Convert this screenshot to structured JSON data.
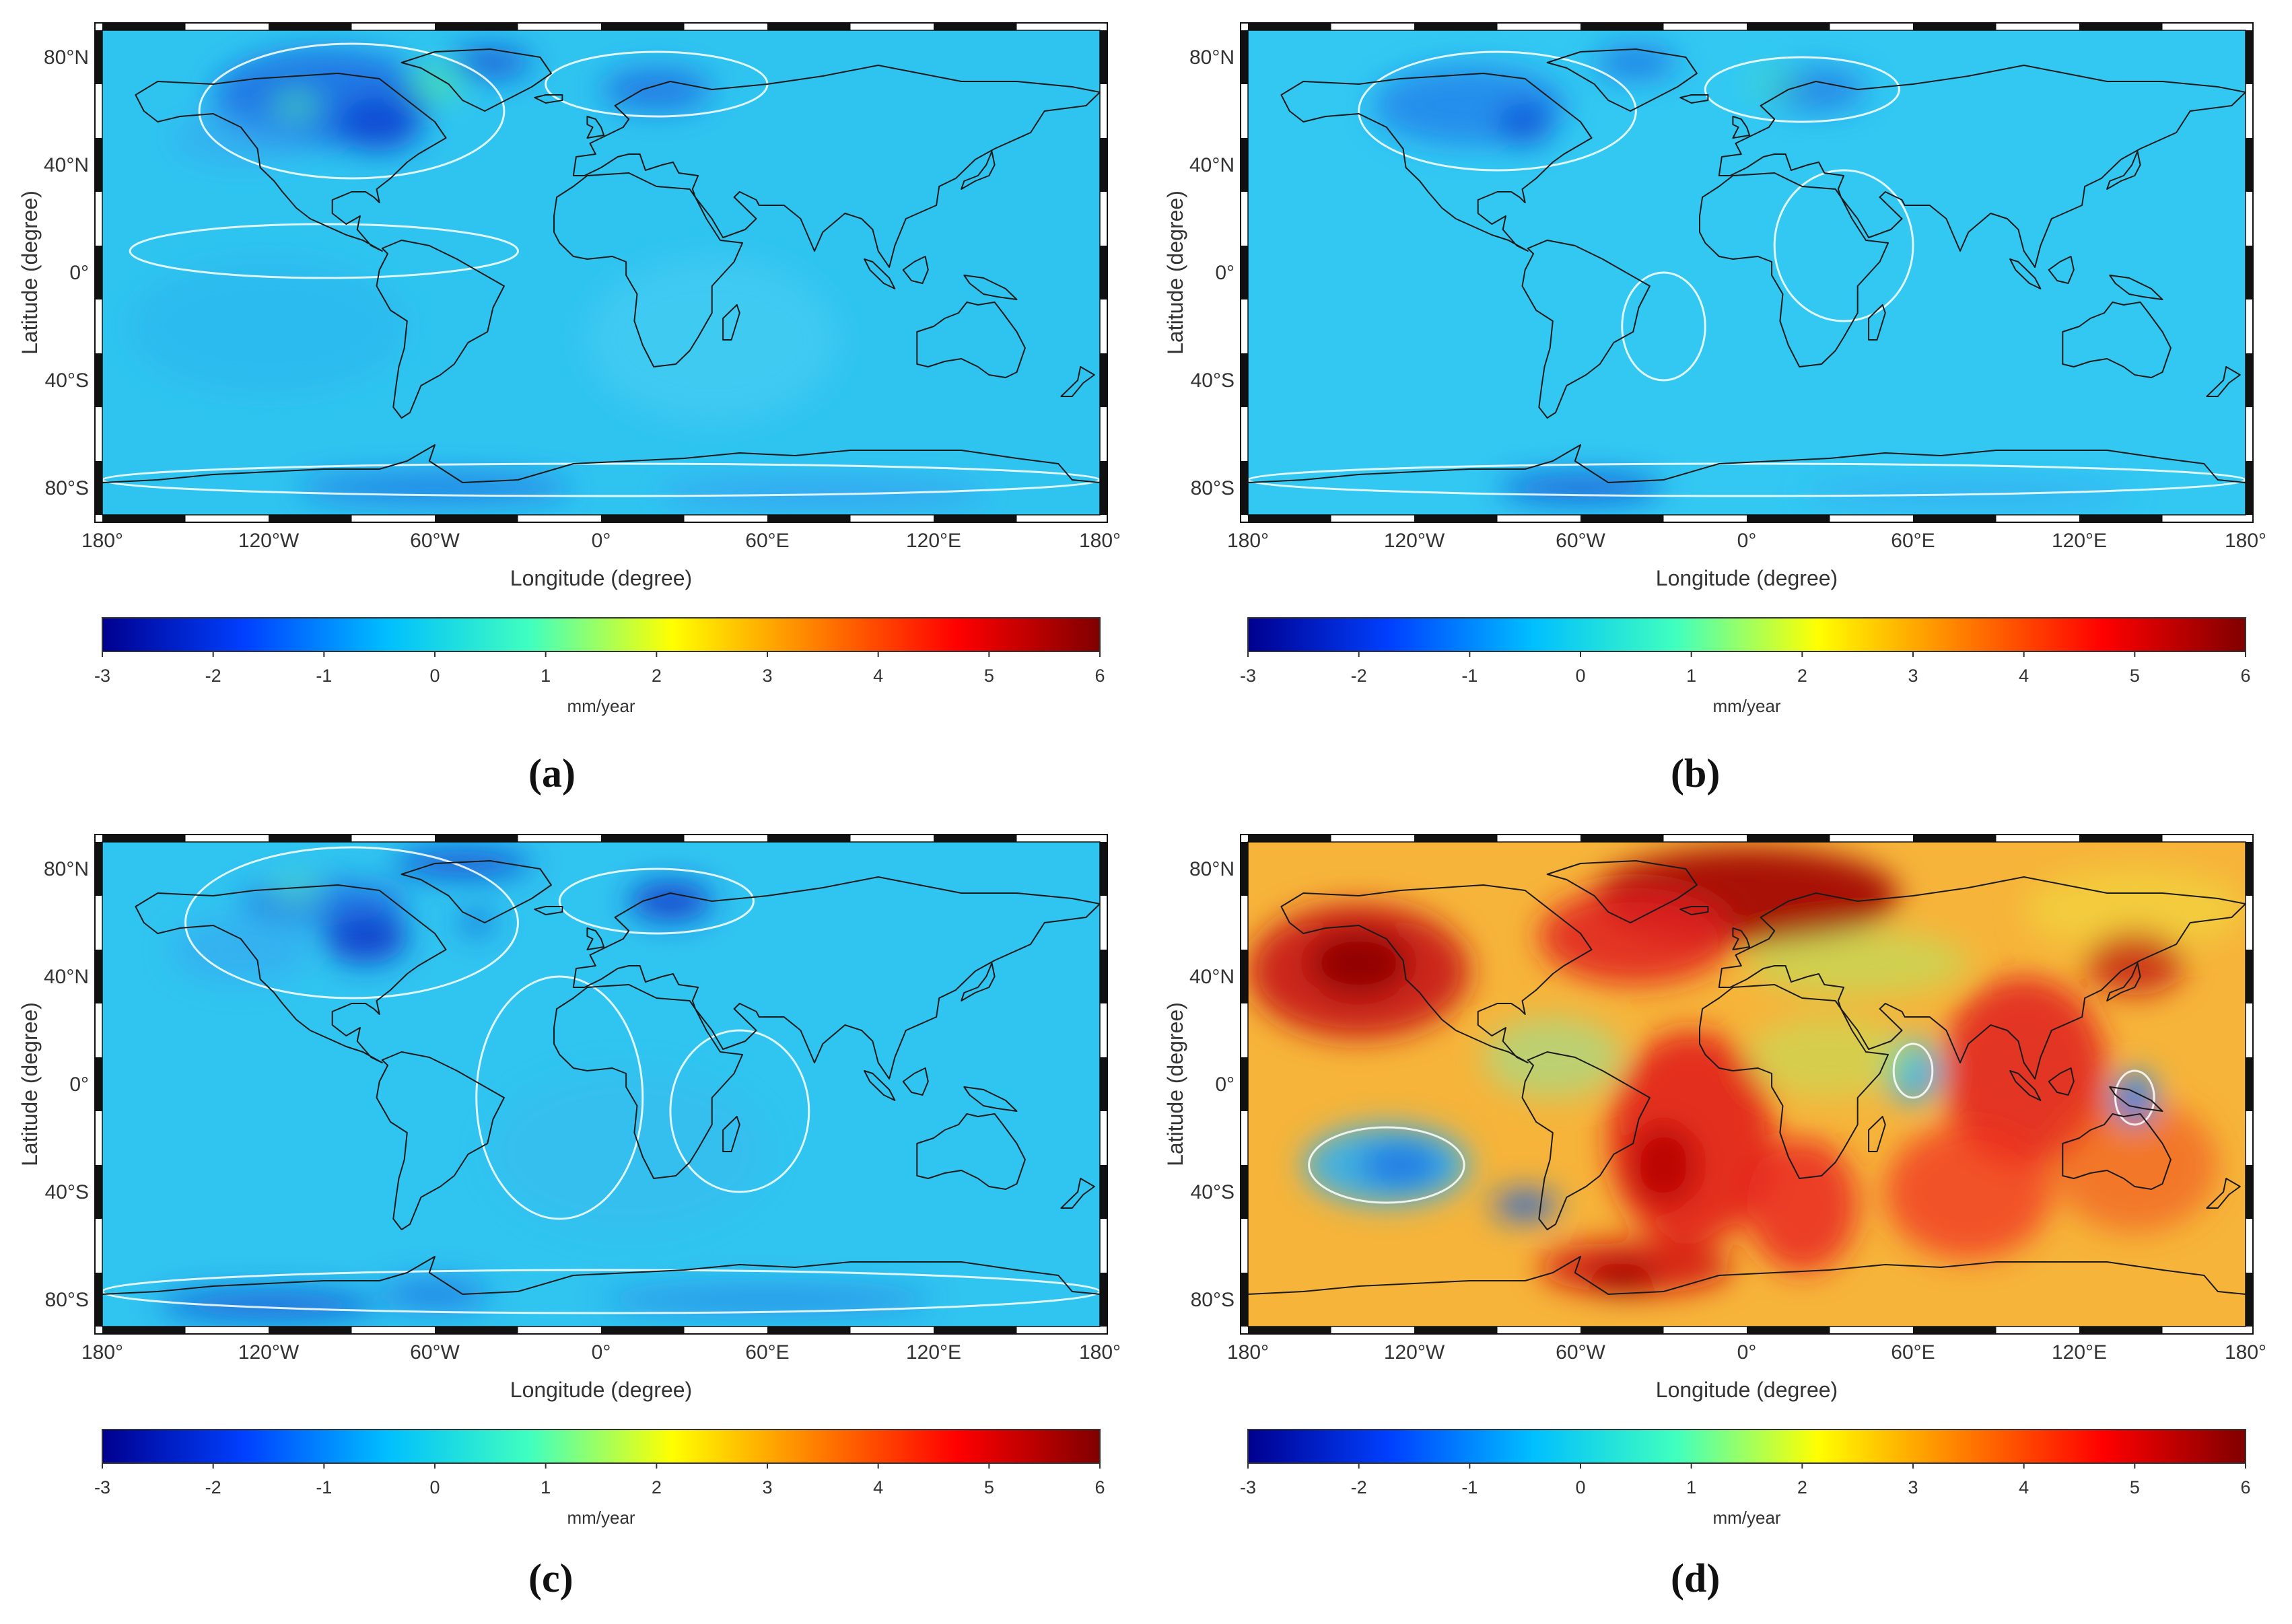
{
  "figure": {
    "panels": [
      {
        "id": "a",
        "label": "(a)",
        "theme": "blue-neg"
      },
      {
        "id": "b",
        "label": "(b)",
        "theme": "blue-flat"
      },
      {
        "id": "c",
        "label": "(c)",
        "theme": "blue-neg2"
      },
      {
        "id": "d",
        "label": "(d)",
        "theme": "red"
      }
    ],
    "axis": {
      "xlabel": "Longitude (degree)",
      "ylabel": "Latitude (degree)",
      "lon_ticks": [
        "180°",
        "120°W",
        "60°W",
        "0°",
        "60°E",
        "120°E",
        "180°"
      ],
      "lat_ticks": [
        "80°N",
        "40°N",
        "0°",
        "40°S",
        "80°S"
      ]
    },
    "colorbar": {
      "unit": "mm/year",
      "ticks": [
        "-3",
        "-2",
        "-1",
        "0",
        "1",
        "2",
        "3",
        "4",
        "5",
        "6"
      ],
      "range": [
        -3,
        6
      ],
      "colors": [
        "#00008f",
        "#0040ff",
        "#00bfff",
        "#40ffbf",
        "#ffff00",
        "#ff8000",
        "#ff0000",
        "#800000"
      ]
    }
  }
}
